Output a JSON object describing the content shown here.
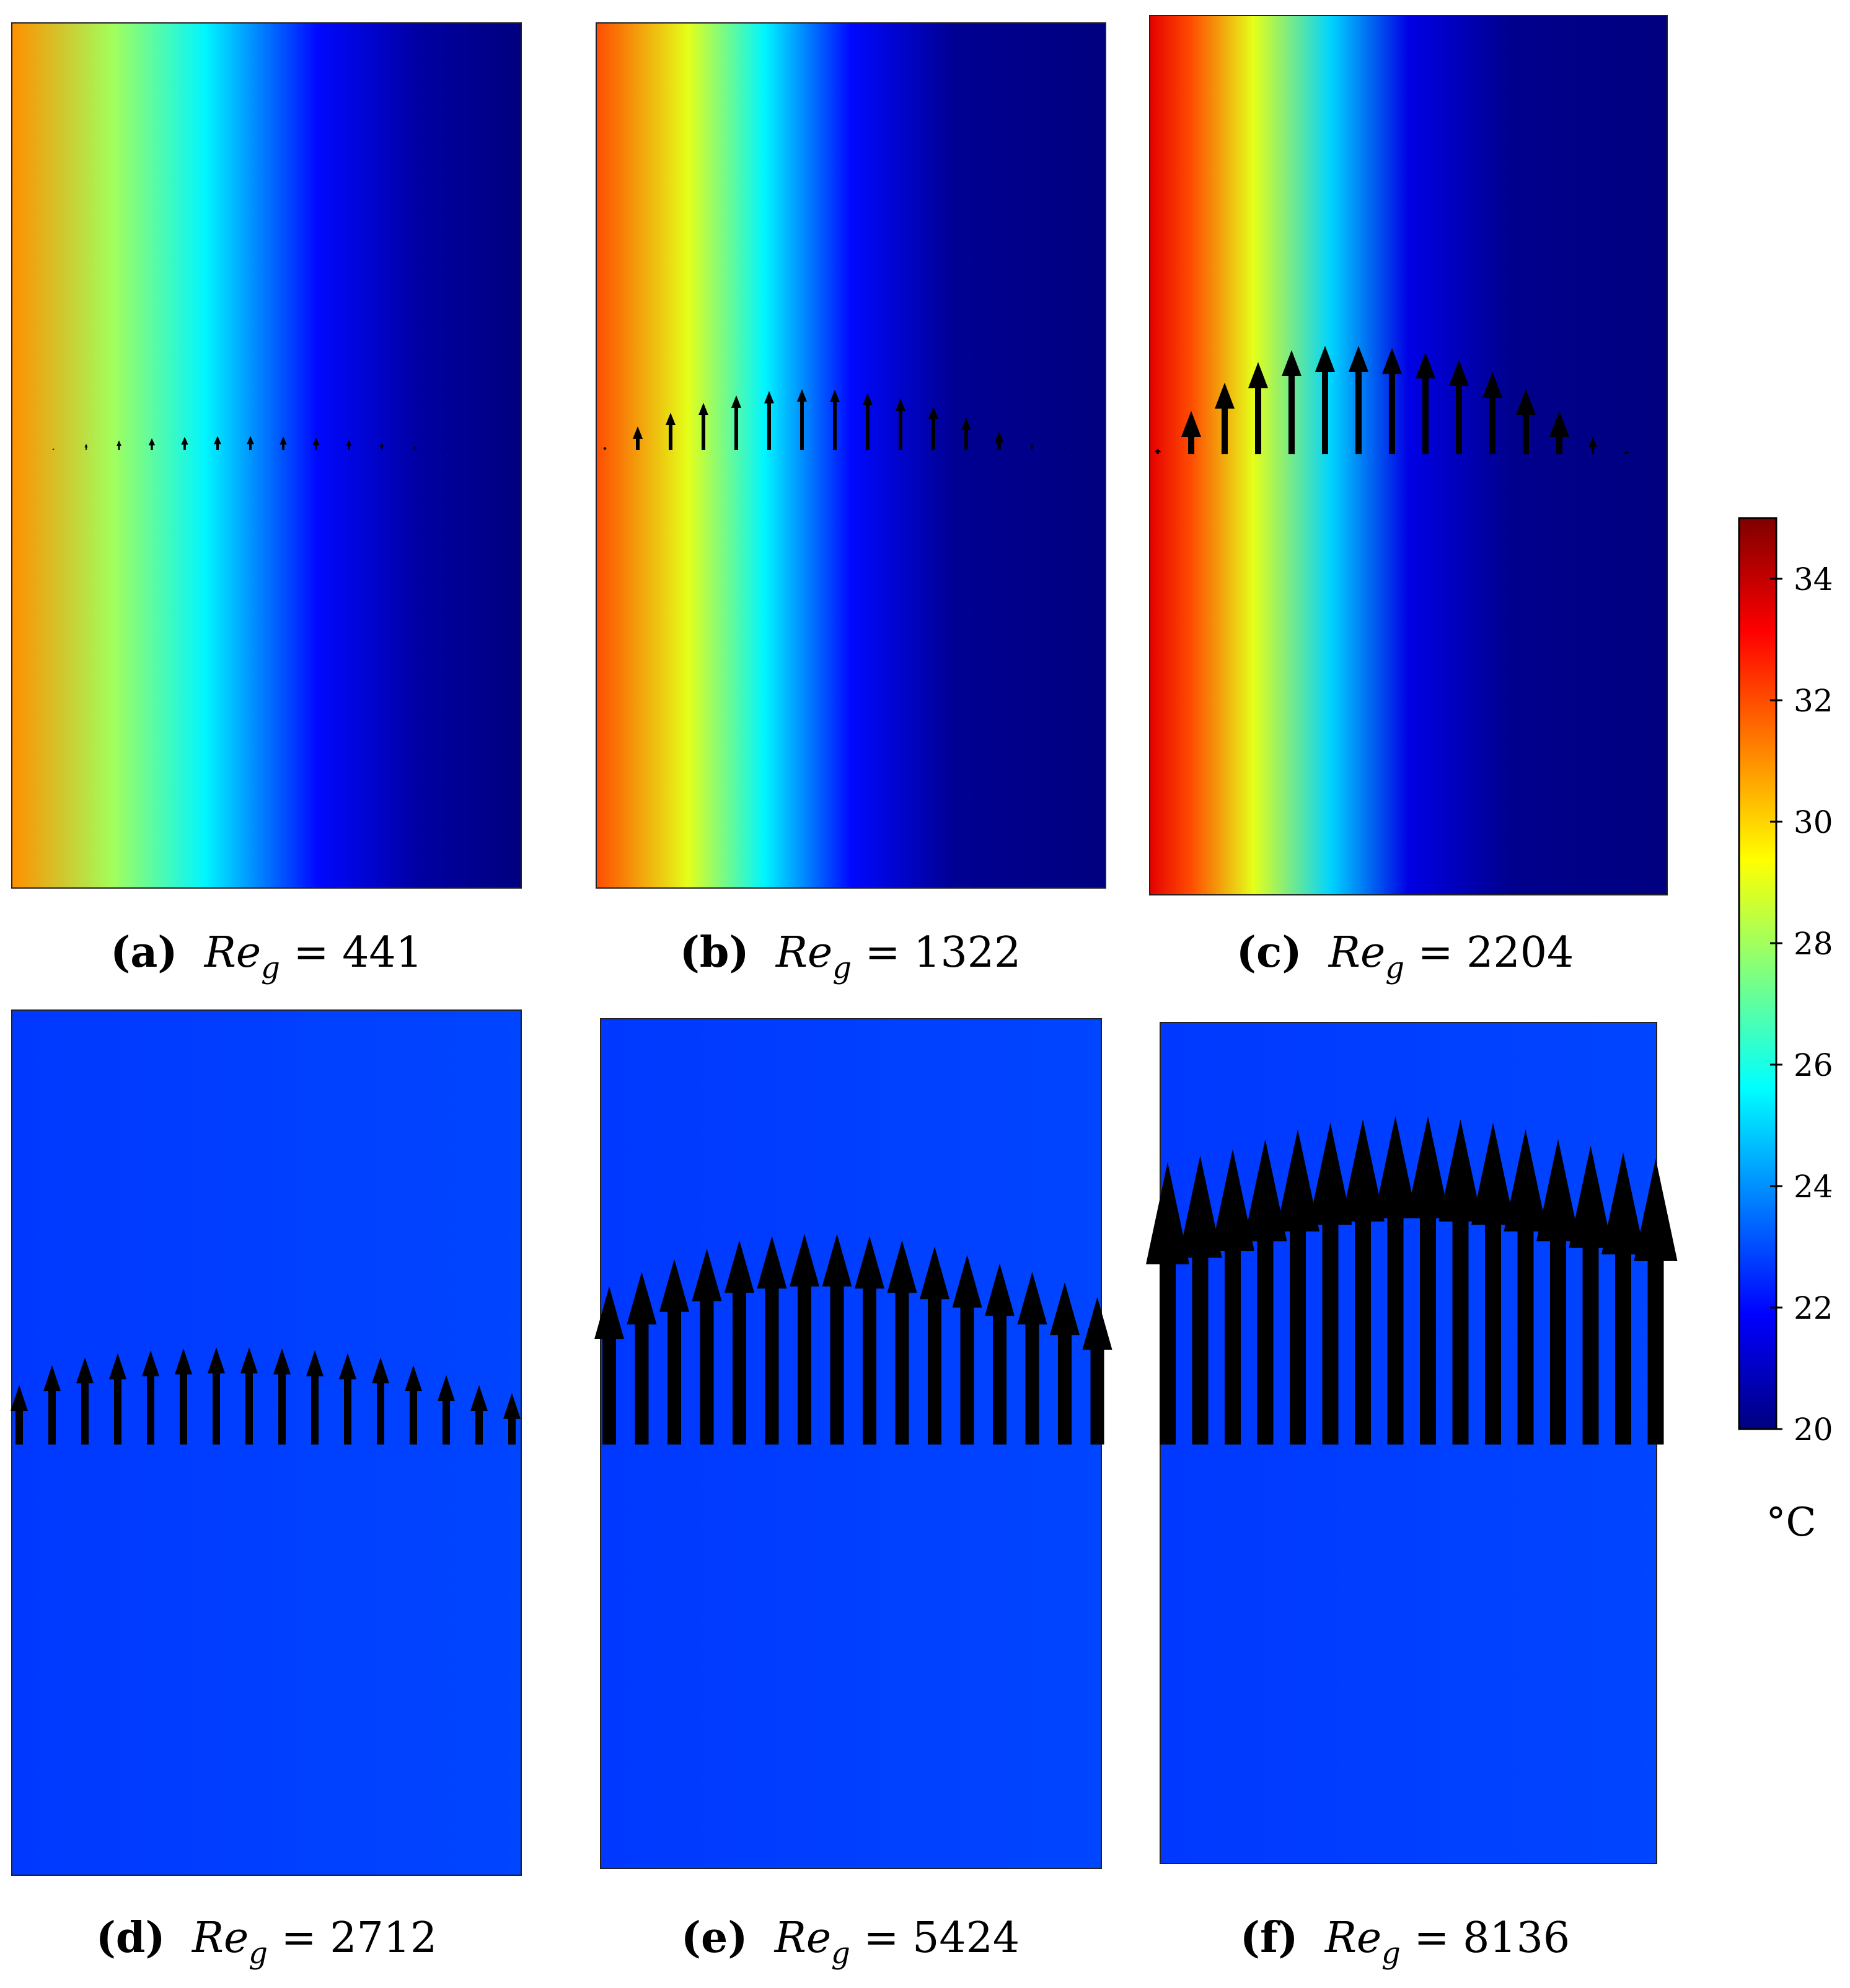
{
  "chart_data": {
    "type": "heatmap",
    "description_units": "temperature field with gas velocity vectors",
    "colorbar": {
      "unit": "°C",
      "range": [
        20,
        35
      ],
      "ticks": [
        20,
        22,
        24,
        26,
        28,
        30,
        32,
        34
      ],
      "colormap": [
        "#00007f",
        "#0000ff",
        "#007fff",
        "#00ffff",
        "#7fff7f",
        "#ffff00",
        "#ff7f00",
        "#ff0000",
        "#7f0000"
      ]
    },
    "panels": [
      {
        "id": "a",
        "letter": "(a)",
        "re_symbol": "Re",
        "re_sub": "g",
        "equals": "=",
        "re_value": "441",
        "temperature_profile": [
          {
            "x": 0,
            "t": 31
          },
          {
            "x": 0.2,
            "t": 28
          },
          {
            "x": 0.38,
            "t": 25.5
          },
          {
            "x": 0.6,
            "t": 22
          },
          {
            "x": 0.8,
            "t": 20.5
          },
          {
            "x": 1,
            "t": 20
          }
        ],
        "arrow_count": 15,
        "arrow_magnitudes": [
          0.05,
          0.22,
          0.34,
          0.42,
          0.47,
          0.5,
          0.5,
          0.48,
          0.44,
          0.36,
          0.26,
          0.15,
          0.06,
          0.02,
          0.01
        ]
      },
      {
        "id": "b",
        "letter": "(b)",
        "re_symbol": "Re",
        "re_sub": "g",
        "equals": "=",
        "re_value": "1322",
        "temperature_profile": [
          {
            "x": 0,
            "t": 32
          },
          {
            "x": 0.18,
            "t": 29
          },
          {
            "x": 0.33,
            "t": 25.5
          },
          {
            "x": 0.5,
            "t": 22
          },
          {
            "x": 0.7,
            "t": 20.3
          },
          {
            "x": 1,
            "t": 20
          }
        ],
        "arrow_count": 15,
        "arrow_magnitudes": [
          0.05,
          0.38,
          0.6,
          0.76,
          0.88,
          0.95,
          0.98,
          0.97,
          0.92,
          0.83,
          0.7,
          0.52,
          0.3,
          0.1,
          0.02
        ]
      },
      {
        "id": "c",
        "letter": "(c)",
        "re_symbol": "Re",
        "re_sub": "g",
        "equals": "=",
        "re_value": "2204",
        "temperature_profile": [
          {
            "x": 0,
            "t": 33.5
          },
          {
            "x": 0.08,
            "t": 32
          },
          {
            "x": 0.2,
            "t": 29
          },
          {
            "x": 0.35,
            "t": 25
          },
          {
            "x": 0.5,
            "t": 21.5
          },
          {
            "x": 0.7,
            "t": 20.2
          },
          {
            "x": 1,
            "t": 20
          }
        ],
        "arrow_count": 15,
        "arrow_magnitudes": [
          0.05,
          0.4,
          0.66,
          0.85,
          0.96,
          1.0,
          1.0,
          0.98,
          0.94,
          0.87,
          0.76,
          0.6,
          0.4,
          0.16,
          0.03
        ]
      },
      {
        "id": "d",
        "letter": "(d)",
        "re_symbol": "Re",
        "re_sub": "g",
        "equals": "=",
        "re_value": "2712",
        "temperature_profile": [
          {
            "x": 0,
            "t": 22.7
          },
          {
            "x": 1,
            "t": 22.9
          }
        ],
        "arrow_count": 16,
        "arrow_magnitudes": [
          0.6,
          0.8,
          0.88,
          0.92,
          0.95,
          0.97,
          0.98,
          0.98,
          0.97,
          0.95,
          0.92,
          0.88,
          0.8,
          0.7,
          0.6,
          0.52
        ]
      },
      {
        "id": "e",
        "letter": "(e)",
        "re_symbol": "Re",
        "re_sub": "g",
        "equals": "=",
        "re_value": "5424",
        "temperature_profile": [
          {
            "x": 0,
            "t": 22.7
          },
          {
            "x": 1,
            "t": 22.9
          }
        ],
        "arrow_count": 16,
        "arrow_magnitudes": [
          0.75,
          0.82,
          0.88,
          0.93,
          0.97,
          0.99,
          1.0,
          1.0,
          0.99,
          0.97,
          0.94,
          0.9,
          0.86,
          0.82,
          0.77,
          0.7
        ]
      },
      {
        "id": "f",
        "letter": "(f)",
        "re_symbol": "Re",
        "re_sub": "g",
        "equals": "=",
        "re_value": "8136",
        "temperature_profile": [
          {
            "x": 0,
            "t": 22.7
          },
          {
            "x": 1,
            "t": 22.9
          }
        ],
        "arrow_count": 16,
        "arrow_magnitudes": [
          0.86,
          0.88,
          0.9,
          0.93,
          0.96,
          0.98,
          0.99,
          1.0,
          1.0,
          0.99,
          0.98,
          0.96,
          0.93,
          0.91,
          0.89,
          0.87
        ]
      }
    ]
  }
}
